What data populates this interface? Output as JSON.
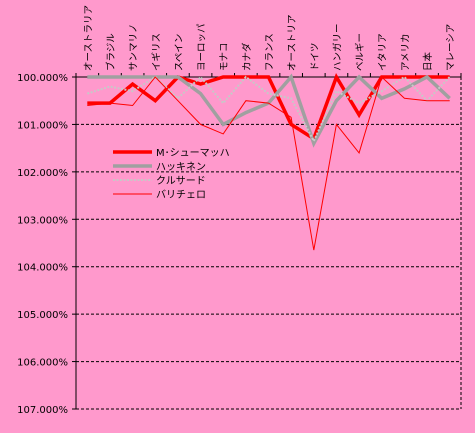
{
  "chart_data": {
    "type": "line",
    "title": "",
    "xlabel": "",
    "ylabel": "",
    "y_reversed": true,
    "ylim": [
      100,
      107
    ],
    "yticks": [
      100,
      101,
      102,
      103,
      104,
      105,
      106,
      107
    ],
    "ytick_labels": [
      "100.000%",
      "101.000%",
      "102.000%",
      "103.000%",
      "104.000%",
      "105.000%",
      "106.000%",
      "107.000%"
    ],
    "grid": "dashed-horizontal",
    "legend_position": "left-middle",
    "categories": [
      "オーストラリア",
      "ブラジル",
      "サンマリノ",
      "イギリス",
      "スペイン",
      "ヨーロッパ",
      "モナコ",
      "カナダ",
      "フランス",
      "オーストリア",
      "ドイツ",
      "ハンガリー",
      "ベルギー",
      "イタリア",
      "アメリカ",
      "日本",
      "マレーシア"
    ],
    "series": [
      {
        "name": "M･シューマッハ",
        "color": "#ff0000",
        "style": "solid-thick",
        "values": [
          100.55,
          100.55,
          100.15,
          100.5,
          100.0,
          100.15,
          100.0,
          100.0,
          100.0,
          101.0,
          101.3,
          100.0,
          100.8,
          100.0,
          100.0,
          100.0,
          100.0
        ]
      },
      {
        "name": "ハッキネン",
        "color": "#a0a0a0",
        "style": "solid-thick",
        "values": [
          100.0,
          100.0,
          100.0,
          100.0,
          100.0,
          100.35,
          101.0,
          100.75,
          100.55,
          100.0,
          101.4,
          100.5,
          100.0,
          100.45,
          100.25,
          100.0,
          100.45
        ]
      },
      {
        "name": "クルサード",
        "color": "#c8c8c8",
        "style": "dotted",
        "values": [
          100.35,
          100.2,
          100.3,
          100.0,
          100.45,
          100.0,
          100.55,
          100.0,
          100.35,
          100.45,
          101.35,
          100.3,
          100.55,
          100.3,
          100.0,
          100.5,
          100.0
        ]
      },
      {
        "name": "バリチェロ",
        "color": "#ff0000",
        "style": "thin",
        "values": [
          100.6,
          100.55,
          100.6,
          100.0,
          100.5,
          101.0,
          101.2,
          100.5,
          100.55,
          100.85,
          103.65,
          101.0,
          101.6,
          100.0,
          100.45,
          100.5,
          100.5
        ]
      }
    ]
  }
}
